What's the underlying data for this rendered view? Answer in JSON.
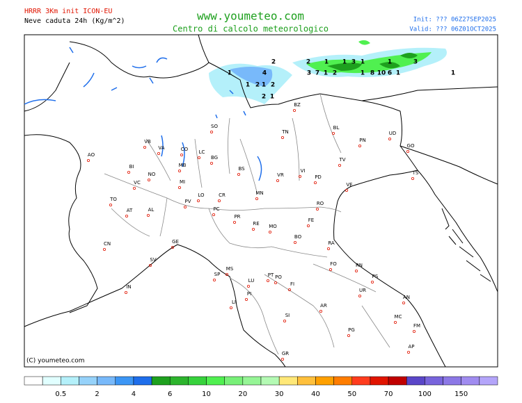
{
  "header": {
    "left": [
      "HRRR 3Km init ICON-EU",
      "Neve caduta 24h (Kg/m^2)"
    ],
    "center": [
      "www.youmeteo.com",
      "Centro di calcolo meteorologico"
    ],
    "right": [
      "Init: ??? 06Z27SEP2025",
      "Valid: ??? 06Z01OCT2025"
    ]
  },
  "cities": [
    "AO",
    "BI",
    "VB",
    "VA",
    "CO",
    "LC",
    "SO",
    "BG",
    "BZ",
    "TN",
    "BL",
    "PN",
    "UD",
    "GO",
    "TS",
    "TV",
    "VE",
    "PD",
    "VI",
    "VR",
    "BS",
    "MB",
    "MI",
    "NO",
    "VC",
    "TO",
    "AT",
    "AL",
    "PV",
    "LO",
    "CR",
    "PC",
    "MN",
    "RO",
    "FE",
    "PR",
    "RE",
    "MO",
    "BO",
    "RA",
    "FO",
    "RN",
    "PS",
    "GE",
    "SV",
    "CN",
    "IN",
    "MS",
    "SP",
    "LU",
    "PT",
    "PO",
    "FI",
    "PI",
    "LI",
    "UR",
    "AN",
    "AR",
    "SI",
    "MC",
    "FM",
    "PG",
    "GR",
    "AP"
  ],
  "snow_labels": [
    2,
    2,
    1,
    1,
    3,
    1,
    1,
    3,
    1,
    4,
    3,
    7,
    1,
    2,
    1,
    8,
    10,
    6,
    1,
    1,
    1,
    2,
    1,
    2,
    2,
    1
  ],
  "copyright": "(C) youmeteo.com",
  "colorbar": {
    "colors": [
      "#ffffff",
      "#e1ffff",
      "#b4f0fa",
      "#96d2fa",
      "#78b9fa",
      "#3c96f5",
      "#1e6eeb",
      "#1ea01e",
      "#2db42d",
      "#37d23c",
      "#50f050",
      "#78f078",
      "#96f596",
      "#b4fab4",
      "#ffe878",
      "#ffc03c",
      "#ffa000",
      "#ff7d00",
      "#ff3c1e",
      "#e11400",
      "#c00000",
      "#5a46c8",
      "#7864dc",
      "#8c78e6",
      "#a08cf0",
      "#b4a5fa"
    ],
    "labels": [
      0.5,
      2,
      4,
      6,
      10,
      20,
      30,
      40,
      50,
      70,
      100,
      150
    ]
  }
}
